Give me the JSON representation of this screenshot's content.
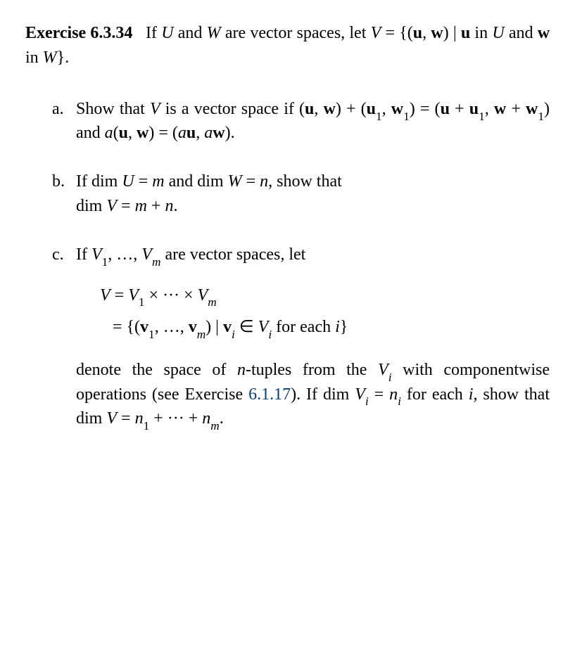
{
  "exercise": {
    "label": "Exercise 6.3.34",
    "intro_html": "If <span class='i'>U</span> and <span class='i'>W</span> are vector spaces, let <span class='i'>V</span> = {(<span class='u'>u</span>, <span class='u'>w</span>) | <span class='u'>u</span> in <span class='i'>U</span> and <span class='u'>w</span> in <span class='i'>W</span>}."
  },
  "parts": {
    "a": {
      "marker": "a.",
      "html": "Show that <span class='i'>V</span> is a vector space if (<span class='u'>u</span>, <span class='u'>w</span>) + (<span class='u'>u</span><sub>1</sub>, <span class='u'>w</span><sub>1</sub>) = (<span class='u'>u</span> + <span class='u'>u</span><sub>1</sub>, <span class='u'>w</span> + <span class='u'>w</span><sub>1</sub>) and <span class='i'>a</span>(<span class='u'>u</span>, <span class='u'>w</span>) = (<span class='i'>a</span><span class='u'>u</span>, <span class='i'>a</span><span class='u'>w</span>)."
    },
    "b": {
      "marker": "b.",
      "line1_html": "If dim <span class='i'>U</span> = <span class='i'>m</span> and dim <span class='i'>W</span> = <span class='i'>n</span>, show that",
      "line2_html": "dim <span class='i'>V</span> = <span class='i'>m</span> + <span class='i'>n</span>."
    },
    "c": {
      "marker": "c.",
      "lead_html": "If <span class='i'>V</span><sub>1</sub>, …, <span class='i'>V</span><sub><span class='i'>m</span></sub> are vector spaces, let",
      "eq1_html": "<span class='i'>V</span> = <span class='i'>V</span><sub>1</sub> × ··· × <span class='i'>V</span><sub><span class='i'>m</span></sub>",
      "eq2_html": "&nbsp;&nbsp;&nbsp;= {(<span class='u'>v</span><sub>1</sub>, …, <span class='u'>v</span><sub><span class='i'>m</span></sub>) | <span class='u'>v</span><sub><span class='i'>i</span></sub> ∈ <span class='i'>V</span><sub><span class='i'>i</span></sub> for each <span class='i'>i</span>}",
      "tail_html": "denote the space of <span class='i'>n</span>-tuples from the <span class='i'>V</span><sub><span class='i'>i</span></sub> with componentwise operations (see Exercise <span class='link'>6.1.17</span>). If dim <span class='i'>V</span><sub><span class='i'>i</span></sub> = <span class='i'>n</span><sub><span class='i'>i</span></sub> for each <span class='i'>i</span>, show that dim <span class='i'>V</span> = <span class='i'>n</span><sub>1</sub> + ··· + <span class='i'>n</span><sub><span class='i'>m</span></sub>."
    }
  }
}
